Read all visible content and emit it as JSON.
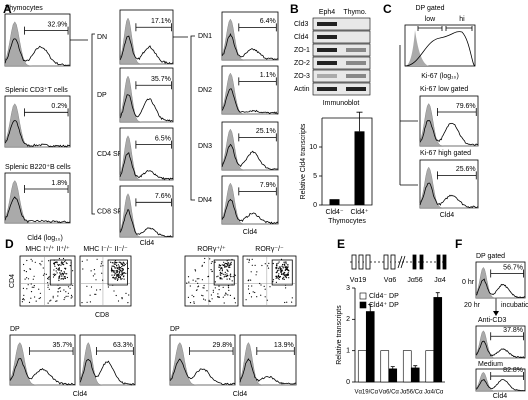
{
  "panels": {
    "A": {
      "label": "A",
      "left": [
        {
          "title": "Thymocytes",
          "gate": "32.9%"
        },
        {
          "title": "Splenic CD3⁺T cells",
          "gate": "0.2%"
        },
        {
          "title": "Splenic B220⁺B cells",
          "gate": "1.8%"
        }
      ],
      "left_xlabel": "Cld4 (log₁₀)",
      "middle": [
        {
          "title": "DN",
          "gate": "17.1%"
        },
        {
          "title": "DP",
          "gate": "35.7%"
        },
        {
          "title": "CD4 SP",
          "gate": "6.5%"
        },
        {
          "title": "CD8 SP",
          "gate": "7.6%"
        }
      ],
      "middle_xlabel": "Cld4",
      "right": [
        {
          "title": "DN1",
          "gate": "6.4%"
        },
        {
          "title": "DN2",
          "gate": "1.1%"
        },
        {
          "title": "DN3",
          "gate": "25.1%"
        },
        {
          "title": "DN4",
          "gate": "7.9%"
        }
      ],
      "right_xlabel": "Cld4"
    },
    "B": {
      "label": "B",
      "lanes": [
        "Eph4",
        "Thymo."
      ],
      "blots": [
        "Cld3",
        "Cld4",
        "ZO-1",
        "ZO-2",
        "ZO-3",
        "Actin"
      ],
      "blot_caption": "Immunoblot",
      "chart": {
        "type": "bar",
        "ylabel": "Relative Cld4 transcripts",
        "categories": [
          "Cld4⁻",
          "Cld4⁺"
        ],
        "xlabel": "Thymocytes",
        "values": [
          1,
          12.7
        ],
        "errors": [
          null,
          3.3
        ],
        "color": "#000000",
        "ylim": [
          0,
          15
        ],
        "yticks": [
          0,
          5,
          10
        ]
      }
    },
    "C": {
      "label": "C",
      "title": "DP gated",
      "gates": [
        "low",
        "hi"
      ],
      "xlabel": "Ki-67 (log₁₀)",
      "rows": [
        {
          "title": "Ki-67 low gated",
          "gate": "79.6%"
        },
        {
          "title": "Ki-67 high gated",
          "gate": "25.6%"
        }
      ],
      "bottom_xlabel": "Cld4"
    },
    "D": {
      "label": "D",
      "plots": [
        "MHC I⁺/⁺ II⁺/⁺",
        "MHC I⁻/⁻ II⁻/⁻",
        "RORγ⁺/⁺",
        "RORγ⁻/⁻"
      ],
      "ylabel": "CD4",
      "xlabel": "CD8",
      "groups": [
        {
          "title": "DP",
          "gates": [
            "35.7%",
            "63.3%"
          ],
          "xlabel": "Cld4"
        },
        {
          "title": "DP",
          "gates": [
            "29.8%",
            "13.9%"
          ],
          "xlabel": "Cld4"
        }
      ]
    },
    "E": {
      "label": "E",
      "genes": [
        "Vα19",
        "Vα6",
        "Jα56",
        "Jα4"
      ],
      "chart": {
        "type": "bar",
        "ylabel": "Relative transcripts",
        "categories": [
          "Vα19/Cα",
          "Vα6/Cα",
          "Jα56/Cα",
          "Jα4/Cα"
        ],
        "series": [
          {
            "name": "Cld4⁻ DP",
            "color": "#ffffff",
            "values": [
              1,
              1,
              1,
              1
            ]
          },
          {
            "name": "Cld4⁺ DP",
            "color": "#000000",
            "values": [
              2.25,
              0.42,
              0.45,
              2.7
            ],
            "errors": [
              0.22,
              0.07,
              0.07,
              0.15
            ]
          }
        ],
        "ylim": [
          0,
          3
        ],
        "yticks": [
          0,
          1,
          2,
          3
        ]
      }
    },
    "F": {
      "label": "F",
      "title": "DP gated",
      "rows": [
        {
          "title": "0 hr",
          "gate": "56.7%"
        },
        {
          "title": "Anti-CD3",
          "gate": "37.8%"
        },
        {
          "title": "Medium",
          "gate": "82.8%"
        }
      ],
      "arrow_labels": [
        "20 hr",
        "incubation"
      ],
      "xlabel": "Cld4"
    }
  }
}
